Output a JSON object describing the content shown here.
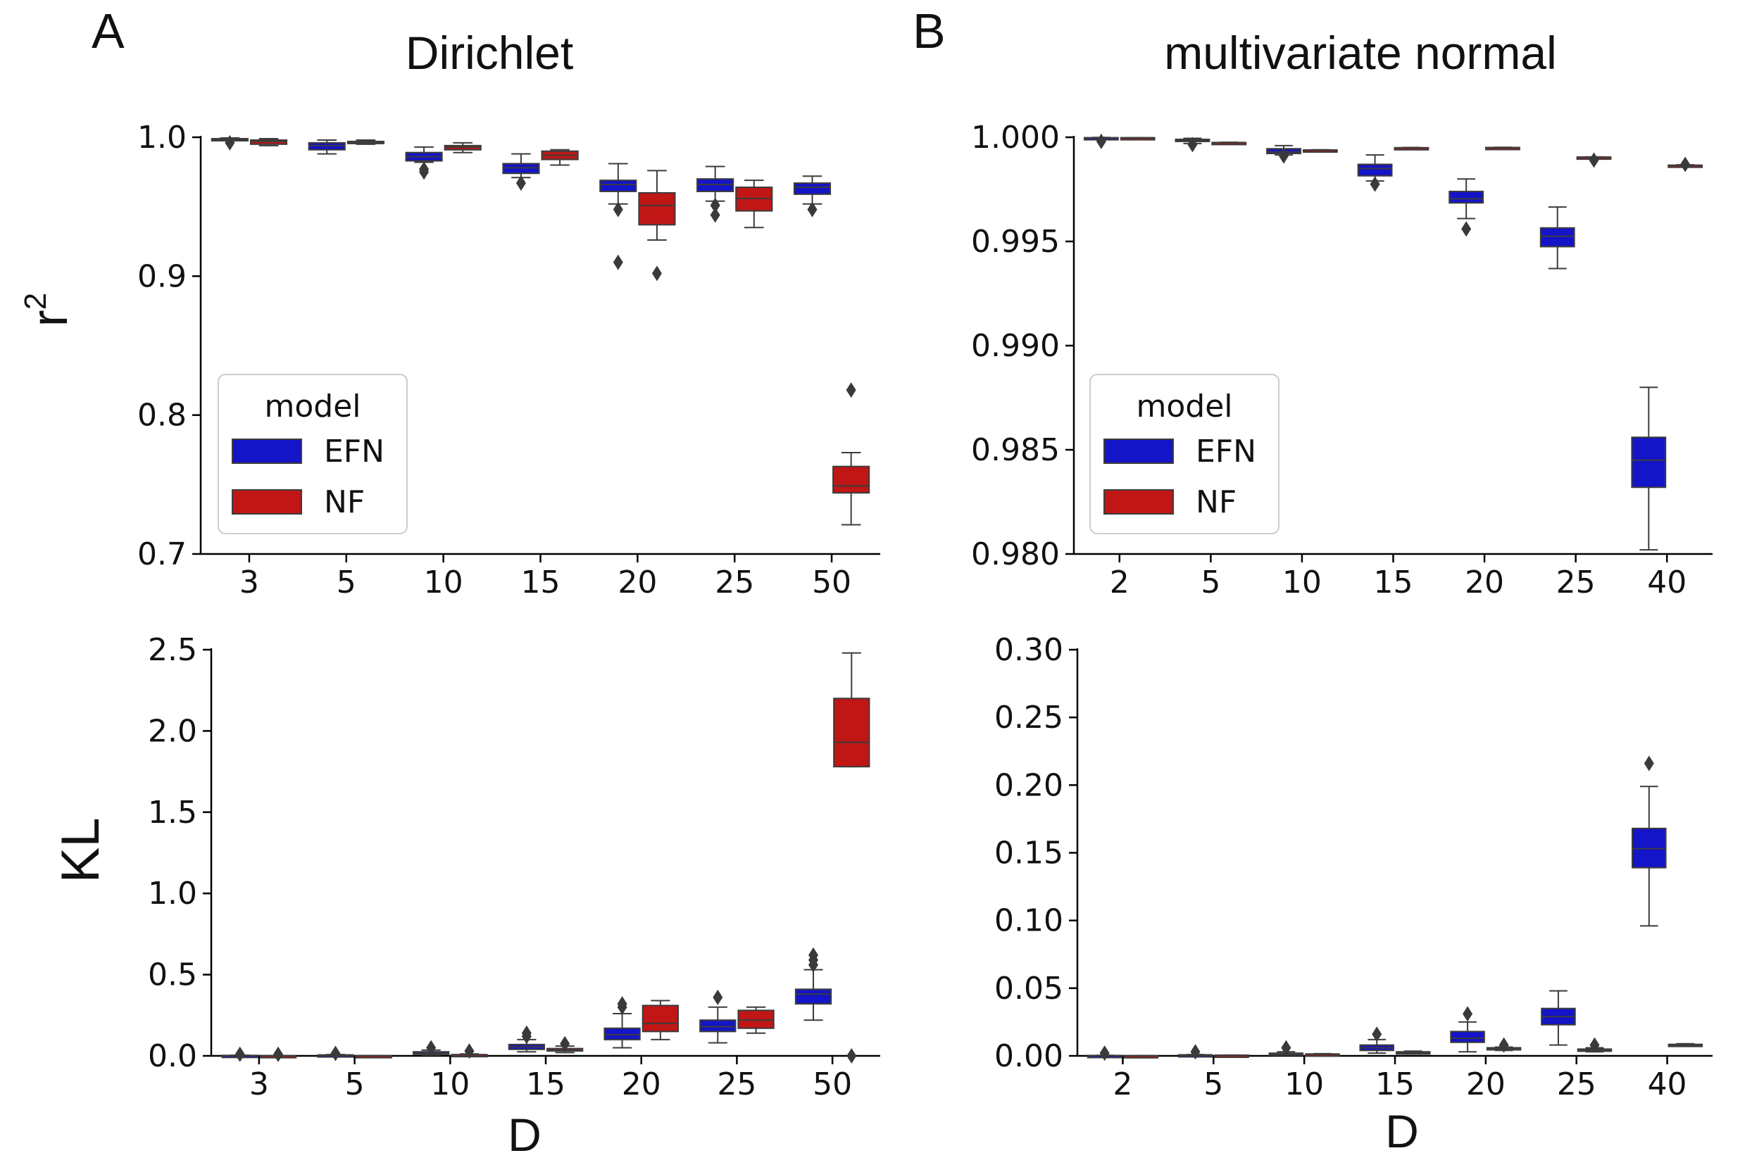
{
  "labels": {
    "panel_a": "A",
    "panel_b": "B",
    "title_a": "Dirichlet",
    "title_b": "multivariate normal",
    "ylabel_top": "r",
    "ylabel_top_sup": "2",
    "ylabel_bottom": "KL",
    "xlabel": "D"
  },
  "legend": {
    "title": "model",
    "entries": [
      {
        "name": "EFN",
        "color": "#1414c8"
      },
      {
        "name": "NF",
        "color": "#c01616"
      }
    ]
  },
  "colors": {
    "EFN": "#1414c8",
    "NF": "#c01616",
    "outline": "#3c3c3c"
  },
  "chart_data": [
    {
      "id": "dirichlet_r2",
      "type": "box",
      "title": "Dirichlet",
      "xlabel": "",
      "ylabel": "r²",
      "categories": [
        "3",
        "5",
        "10",
        "15",
        "20",
        "25",
        "50"
      ],
      "ylim": [
        0.7,
        1.0
      ],
      "yticks": [
        "0.7",
        "0.8",
        "0.9",
        "1.0"
      ],
      "legend": "lower-left",
      "series": [
        {
          "name": "EFN",
          "color": "#1414c8",
          "boxes": [
            {
              "min": 0.998,
              "q1": 0.998,
              "med": 0.9985,
              "q3": 0.999,
              "max": 0.9995,
              "outliers": [
                0.996
              ]
            },
            {
              "min": 0.988,
              "q1": 0.991,
              "med": 0.994,
              "q3": 0.996,
              "max": 0.998,
              "outliers": []
            },
            {
              "min": 0.982,
              "q1": 0.983,
              "med": 0.986,
              "q3": 0.989,
              "max": 0.993,
              "outliers": [
                0.977,
                0.975
              ]
            },
            {
              "min": 0.971,
              "q1": 0.974,
              "med": 0.978,
              "q3": 0.981,
              "max": 0.988,
              "outliers": [
                0.967
              ]
            },
            {
              "min": 0.952,
              "q1": 0.961,
              "med": 0.966,
              "q3": 0.969,
              "max": 0.981,
              "outliers": [
                0.948,
                0.91
              ]
            },
            {
              "min": 0.954,
              "q1": 0.961,
              "med": 0.966,
              "q3": 0.97,
              "max": 0.979,
              "outliers": [
                0.951,
                0.944
              ]
            },
            {
              "min": 0.952,
              "q1": 0.959,
              "med": 0.964,
              "q3": 0.967,
              "max": 0.972,
              "outliers": [
                0.948
              ]
            }
          ]
        },
        {
          "name": "NF",
          "color": "#c01616",
          "boxes": [
            {
              "min": 0.994,
              "q1": 0.995,
              "med": 0.997,
              "q3": 0.998,
              "max": 0.999,
              "outliers": []
            },
            {
              "min": 0.995,
              "q1": 0.996,
              "med": 0.9965,
              "q3": 0.997,
              "max": 0.998,
              "outliers": []
            },
            {
              "min": 0.989,
              "q1": 0.991,
              "med": 0.993,
              "q3": 0.994,
              "max": 0.996,
              "outliers": []
            },
            {
              "min": 0.98,
              "q1": 0.984,
              "med": 0.987,
              "q3": 0.99,
              "max": 0.991,
              "outliers": []
            },
            {
              "min": 0.926,
              "q1": 0.937,
              "med": 0.951,
              "q3": 0.96,
              "max": 0.976,
              "outliers": [
                0.902
              ]
            },
            {
              "min": 0.935,
              "q1": 0.947,
              "med": 0.956,
              "q3": 0.964,
              "max": 0.969,
              "outliers": []
            },
            {
              "min": 0.721,
              "q1": 0.744,
              "med": 0.749,
              "q3": 0.763,
              "max": 0.773,
              "outliers": [
                0.818
              ]
            }
          ]
        }
      ]
    },
    {
      "id": "mvn_r2",
      "type": "box",
      "title": "multivariate normal",
      "xlabel": "",
      "ylabel": "r²",
      "categories": [
        "2",
        "5",
        "10",
        "15",
        "20",
        "25",
        "40"
      ],
      "ylim": [
        0.98,
        1.0
      ],
      "yticks": [
        "0.980",
        "0.985",
        "0.990",
        "0.995",
        "1.000"
      ],
      "legend": "lower-left",
      "series": [
        {
          "name": "EFN",
          "color": "#1414c8",
          "boxes": [
            {
              "min": 0.99995,
              "q1": 0.99996,
              "med": 0.99997,
              "q3": 0.99998,
              "max": 0.99999,
              "outliers": [
                0.9998
              ]
            },
            {
              "min": 0.9997,
              "q1": 0.99982,
              "med": 0.99987,
              "q3": 0.9999,
              "max": 0.99995,
              "outliers": [
                0.99965
              ]
            },
            {
              "min": 0.99915,
              "q1": 0.99922,
              "med": 0.9993,
              "q3": 0.99945,
              "max": 0.9996,
              "outliers": [
                0.9991
              ]
            },
            {
              "min": 0.9979,
              "q1": 0.99815,
              "med": 0.9985,
              "q3": 0.9987,
              "max": 0.99915,
              "outliers": [
                0.99775
              ]
            },
            {
              "min": 0.9961,
              "q1": 0.99685,
              "med": 0.99705,
              "q3": 0.9974,
              "max": 0.998,
              "outliers": [
                0.9956
              ]
            },
            {
              "min": 0.9937,
              "q1": 0.99475,
              "med": 0.99525,
              "q3": 0.99565,
              "max": 0.99665,
              "outliers": []
            },
            {
              "min": 0.9802,
              "q1": 0.9832,
              "med": 0.9845,
              "q3": 0.9856,
              "max": 0.988,
              "outliers": []
            }
          ]
        },
        {
          "name": "NF",
          "color": "#c01616",
          "boxes": [
            {
              "min": 0.99996,
              "q1": 0.99997,
              "med": 0.99997,
              "q3": 0.99998,
              "max": 0.99998,
              "outliers": []
            },
            {
              "min": 0.99972,
              "q1": 0.99973,
              "med": 0.99974,
              "q3": 0.99975,
              "max": 0.99976,
              "outliers": []
            },
            {
              "min": 0.99936,
              "q1": 0.99937,
              "med": 0.99938,
              "q3": 0.99939,
              "max": 0.9994,
              "outliers": []
            },
            {
              "min": 0.99947,
              "q1": 0.99948,
              "med": 0.99949,
              "q3": 0.9995,
              "max": 0.99951,
              "outliers": []
            },
            {
              "min": 0.99948,
              "q1": 0.99949,
              "med": 0.9995,
              "q3": 0.99951,
              "max": 0.99952,
              "outliers": []
            },
            {
              "min": 0.99902,
              "q1": 0.99903,
              "med": 0.99904,
              "q3": 0.99905,
              "max": 0.99906,
              "outliers": [
                0.9989
              ]
            },
            {
              "min": 0.9986,
              "q1": 0.99864,
              "med": 0.99865,
              "q3": 0.99866,
              "max": 0.99868,
              "outliers": [
                0.9987
              ]
            }
          ]
        }
      ]
    },
    {
      "id": "dirichlet_kl",
      "type": "box",
      "title": "",
      "xlabel": "D",
      "ylabel": "KL",
      "categories": [
        "3",
        "5",
        "10",
        "15",
        "20",
        "25",
        "50"
      ],
      "ylim": [
        0.0,
        2.5
      ],
      "yticks": [
        "0.0",
        "0.5",
        "1.0",
        "1.5",
        "2.0",
        "2.5"
      ],
      "series": [
        {
          "name": "EFN",
          "color": "#1414c8",
          "boxes": [
            {
              "min": 0.0,
              "q1": 0.001,
              "med": 0.002,
              "q3": 0.003,
              "max": 0.004,
              "outliers": [
                0.01
              ]
            },
            {
              "min": 0.0,
              "q1": 0.002,
              "med": 0.004,
              "q3": 0.006,
              "max": 0.008,
              "outliers": [
                0.015
              ]
            },
            {
              "min": 0.005,
              "q1": 0.01,
              "med": 0.015,
              "q3": 0.025,
              "max": 0.035,
              "outliers": [
                0.05
              ]
            },
            {
              "min": 0.025,
              "q1": 0.04,
              "med": 0.055,
              "q3": 0.07,
              "max": 0.1,
              "outliers": [
                0.12,
                0.14
              ]
            },
            {
              "min": 0.05,
              "q1": 0.1,
              "med": 0.13,
              "q3": 0.17,
              "max": 0.26,
              "outliers": [
                0.3,
                0.32
              ]
            },
            {
              "min": 0.08,
              "q1": 0.15,
              "med": 0.18,
              "q3": 0.22,
              "max": 0.3,
              "outliers": [
                0.36
              ]
            },
            {
              "min": 0.22,
              "q1": 0.32,
              "med": 0.38,
              "q3": 0.41,
              "max": 0.53,
              "outliers": [
                0.56,
                0.59,
                0.62
              ]
            }
          ]
        },
        {
          "name": "NF",
          "color": "#c01616",
          "boxes": [
            {
              "min": 0.0,
              "q1": 0.0005,
              "med": 0.001,
              "q3": 0.0015,
              "max": 0.002,
              "outliers": [
                0.01
              ]
            },
            {
              "min": 0.0,
              "q1": 0.0005,
              "med": 0.001,
              "q3": 0.0015,
              "max": 0.002,
              "outliers": []
            },
            {
              "min": 0.002,
              "q1": 0.004,
              "med": 0.006,
              "q3": 0.008,
              "max": 0.012,
              "outliers": [
                0.03
              ]
            },
            {
              "min": 0.02,
              "q1": 0.03,
              "med": 0.035,
              "q3": 0.045,
              "max": 0.06,
              "outliers": [
                0.075
              ]
            },
            {
              "min": 0.1,
              "q1": 0.15,
              "med": 0.2,
              "q3": 0.31,
              "max": 0.34,
              "outliers": []
            },
            {
              "min": 0.14,
              "q1": 0.17,
              "med": 0.22,
              "q3": 0.28,
              "max": 0.3,
              "outliers": []
            },
            {
              "min": 1.78,
              "q1": 1.78,
              "med": 1.93,
              "q3": 2.2,
              "max": 2.48,
              "outliers": [
                0.0
              ]
            }
          ]
        }
      ]
    },
    {
      "id": "mvn_kl",
      "type": "box",
      "title": "",
      "xlabel": "D",
      "ylabel": "",
      "categories": [
        "2",
        "5",
        "10",
        "15",
        "20",
        "25",
        "40"
      ],
      "ylim": [
        0.0,
        0.3
      ],
      "yticks": [
        "0.00",
        "0.05",
        "0.10",
        "0.15",
        "0.20",
        "0.25",
        "0.30"
      ],
      "series": [
        {
          "name": "EFN",
          "color": "#1414c8",
          "boxes": [
            {
              "min": 0.0,
              "q1": 0.0001,
              "med": 0.0002,
              "q3": 0.0003,
              "max": 0.0004,
              "outliers": [
                0.002
              ]
            },
            {
              "min": 0.0,
              "q1": 0.0003,
              "med": 0.0005,
              "q3": 0.0008,
              "max": 0.001,
              "outliers": [
                0.003
              ]
            },
            {
              "min": 0.0005,
              "q1": 0.001,
              "med": 0.0015,
              "q3": 0.002,
              "max": 0.003,
              "outliers": [
                0.006
              ]
            },
            {
              "min": 0.002,
              "q1": 0.004,
              "med": 0.006,
              "q3": 0.008,
              "max": 0.012,
              "outliers": [
                0.016
              ]
            },
            {
              "min": 0.003,
              "q1": 0.01,
              "med": 0.013,
              "q3": 0.018,
              "max": 0.025,
              "outliers": [
                0.031
              ]
            },
            {
              "min": 0.008,
              "q1": 0.023,
              "med": 0.029,
              "q3": 0.035,
              "max": 0.048,
              "outliers": []
            },
            {
              "min": 0.096,
              "q1": 0.139,
              "med": 0.153,
              "q3": 0.168,
              "max": 0.199,
              "outliers": [
                0.216
              ]
            }
          ]
        },
        {
          "name": "NF",
          "color": "#c01616",
          "boxes": [
            {
              "min": 0.0,
              "q1": 0.0,
              "med": 0.0001,
              "q3": 0.0001,
              "max": 0.0002,
              "outliers": []
            },
            {
              "min": 0.0002,
              "q1": 0.0003,
              "med": 0.0004,
              "q3": 0.0005,
              "max": 0.0006,
              "outliers": []
            },
            {
              "min": 0.0008,
              "q1": 0.001,
              "med": 0.0012,
              "q3": 0.0014,
              "max": 0.0016,
              "outliers": []
            },
            {
              "min": 0.0015,
              "q1": 0.002,
              "med": 0.0025,
              "q3": 0.003,
              "max": 0.0035,
              "outliers": []
            },
            {
              "min": 0.004,
              "q1": 0.005,
              "med": 0.0055,
              "q3": 0.006,
              "max": 0.0065,
              "outliers": [
                0.008
              ]
            },
            {
              "min": 0.003,
              "q1": 0.004,
              "med": 0.0045,
              "q3": 0.005,
              "max": 0.006,
              "outliers": [
                0.008
              ]
            },
            {
              "min": 0.007,
              "q1": 0.0075,
              "med": 0.008,
              "q3": 0.0085,
              "max": 0.009,
              "outliers": []
            }
          ]
        }
      ]
    }
  ]
}
